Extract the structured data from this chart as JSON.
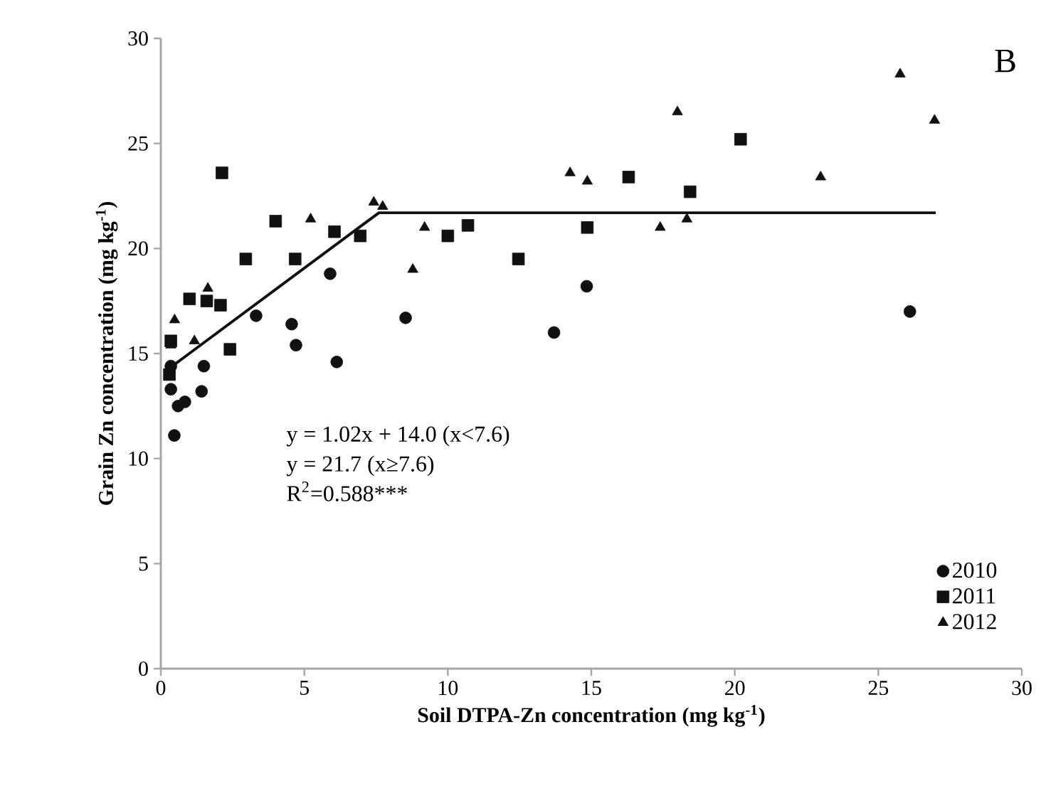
{
  "chart_data": {
    "type": "scatter",
    "xlabel": "Soil DTPA-Zn concentration (mg kg$^{-1}$)",
    "ylabel": "Grain Zn concentration (mg kg$^{-1}$)",
    "xlim": [
      0,
      30
    ],
    "ylim": [
      0,
      30
    ],
    "xticks": [
      0,
      5,
      10,
      15,
      20,
      25,
      30
    ],
    "yticks": [
      0,
      5,
      10,
      15,
      20,
      25,
      30
    ],
    "grid": false,
    "legend": "bottom right",
    "annotations": [
      "B",
      "y = 1.02x + 14.0 (x<7.6)",
      "y = 21.7 (x≥7.6)",
      "R$^{2}$=0.588***"
    ],
    "series": [
      {
        "name": "2010",
        "color": "#111111",
        "marker": "circle",
        "x": [
          0.47,
          0.6,
          0.35,
          0.84,
          1.42,
          1.5,
          3.32,
          4.56,
          4.71,
          6.13,
          5.9,
          0.35,
          8.53,
          13.7,
          14.84,
          26.1
        ],
        "values": [
          11.1,
          12.5,
          13.3,
          12.7,
          13.2,
          14.4,
          16.8,
          16.4,
          15.4,
          14.6,
          18.8,
          14.4,
          16.7,
          16.0,
          18.2,
          17.0
        ]
      },
      {
        "name": "2011",
        "color": "#111111",
        "marker": "square",
        "x": [
          2.13,
          4.0,
          2.96,
          4.68,
          1.0,
          1.6,
          2.08,
          2.41,
          6.05,
          6.95,
          0.35,
          0.3,
          10.0,
          10.7,
          12.46,
          14.86,
          16.3,
          18.44,
          20.2
        ],
        "values": [
          23.6,
          21.3,
          19.5,
          19.5,
          17.6,
          17.5,
          17.3,
          15.2,
          20.8,
          20.6,
          15.6,
          14.0,
          20.6,
          21.1,
          19.5,
          21.0,
          23.4,
          22.7,
          25.2
        ]
      },
      {
        "name": "2012",
        "color": "#111111",
        "marker": "triangle",
        "x": [
          7.42,
          5.22,
          1.64,
          0.48,
          1.17,
          0.35,
          7.73,
          9.19,
          8.78,
          14.26,
          14.86,
          17.4,
          18.33,
          18.0,
          22.99,
          25.76,
          26.96
        ],
        "values": [
          22.2,
          21.4,
          18.1,
          16.6,
          15.6,
          15.4,
          22.0,
          21.0,
          19.0,
          23.6,
          23.2,
          21.0,
          21.4,
          26.5,
          23.4,
          28.3,
          26.1
        ]
      },
      {
        "type": "line",
        "color": "#111111",
        "x": [
          0.3,
          7.6,
          27
        ],
        "values": [
          14.3,
          21.7,
          21.7
        ]
      }
    ]
  }
}
